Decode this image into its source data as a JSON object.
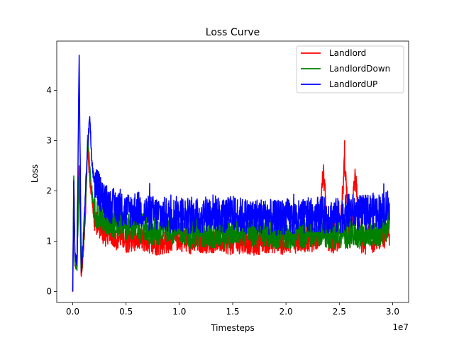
{
  "chart_data": {
    "type": "line",
    "title": "Loss Curve",
    "xlabel": "Timesteps",
    "ylabel": "Loss",
    "x_offset_text": "1e7",
    "xlim": [
      -0.15,
      3.15
    ],
    "ylim": [
      -0.22,
      4.98
    ],
    "x_ticks": [
      0.0,
      0.5,
      1.0,
      1.5,
      2.0,
      2.5,
      3.0
    ],
    "x_tick_labels": [
      "0.0",
      "0.5",
      "1.0",
      "1.5",
      "2.0",
      "2.5",
      "3.0"
    ],
    "y_ticks": [
      0,
      1,
      2,
      3,
      4
    ],
    "y_tick_labels": [
      "0",
      "1",
      "2",
      "3",
      "4"
    ],
    "grid": false,
    "legend_position": "top-right",
    "series": [
      {
        "name": "Landlord",
        "color": "#ff0000",
        "x": [
          0.0,
          0.01,
          0.02,
          0.04,
          0.06,
          0.08,
          0.1,
          0.12,
          0.14,
          0.16,
          0.18,
          0.2,
          0.25,
          0.3,
          0.35,
          0.4,
          0.45,
          0.5,
          0.6,
          0.7,
          0.8,
          0.9,
          1.0,
          1.1,
          1.2,
          1.3,
          1.4,
          1.5,
          1.6,
          1.7,
          1.8,
          1.9,
          2.0,
          2.1,
          2.2,
          2.3,
          2.35,
          2.4,
          2.5,
          2.55,
          2.6,
          2.65,
          2.7,
          2.8,
          2.9,
          2.97
        ],
        "y": [
          0.0,
          2.25,
          0.6,
          0.5,
          2.5,
          0.3,
          0.8,
          1.6,
          2.9,
          2.2,
          1.9,
          1.4,
          1.3,
          1.1,
          1.2,
          1.05,
          1.1,
          1.0,
          1.05,
          1.0,
          0.95,
          1.0,
          1.05,
          0.95,
          1.0,
          1.0,
          1.0,
          0.95,
          1.0,
          0.95,
          1.0,
          1.0,
          0.95,
          1.0,
          1.0,
          1.05,
          2.4,
          1.0,
          1.0,
          2.55,
          1.0,
          2.35,
          0.95,
          1.0,
          1.05,
          1.15
        ]
      },
      {
        "name": "LandlordDown",
        "color": "#008000",
        "x": [
          0.0,
          0.01,
          0.02,
          0.04,
          0.06,
          0.08,
          0.1,
          0.12,
          0.14,
          0.16,
          0.18,
          0.2,
          0.25,
          0.3,
          0.35,
          0.4,
          0.45,
          0.5,
          0.6,
          0.7,
          0.8,
          0.9,
          1.0,
          1.1,
          1.2,
          1.3,
          1.4,
          1.5,
          1.6,
          1.7,
          1.8,
          1.9,
          2.0,
          2.1,
          2.2,
          2.3,
          2.4,
          2.5,
          2.6,
          2.7,
          2.8,
          2.9,
          2.97
        ],
        "y": [
          0.0,
          2.3,
          0.6,
          0.5,
          2.3,
          0.4,
          0.9,
          1.7,
          3.1,
          2.4,
          2.0,
          1.6,
          1.5,
          1.35,
          1.4,
          1.3,
          1.35,
          1.25,
          1.3,
          1.2,
          1.2,
          1.2,
          1.25,
          1.15,
          1.2,
          1.15,
          1.15,
          1.15,
          1.2,
          1.15,
          1.15,
          1.15,
          1.1,
          1.15,
          1.15,
          1.2,
          1.15,
          1.15,
          1.15,
          1.15,
          1.2,
          1.2,
          1.35
        ]
      },
      {
        "name": "LandlordUP",
        "color": "#0000ff",
        "x": [
          0.0,
          0.01,
          0.02,
          0.04,
          0.06,
          0.08,
          0.1,
          0.12,
          0.14,
          0.16,
          0.18,
          0.2,
          0.25,
          0.3,
          0.35,
          0.4,
          0.45,
          0.5,
          0.6,
          0.7,
          0.8,
          0.9,
          1.0,
          1.1,
          1.2,
          1.3,
          1.4,
          1.5,
          1.6,
          1.7,
          1.8,
          1.9,
          2.0,
          2.1,
          2.2,
          2.3,
          2.4,
          2.5,
          2.6,
          2.7,
          2.8,
          2.9,
          2.97
        ],
        "y": [
          0.0,
          2.2,
          0.7,
          0.6,
          4.7,
          0.4,
          1.1,
          2.0,
          2.9,
          3.45,
          2.5,
          2.2,
          2.0,
          1.8,
          1.7,
          1.7,
          1.6,
          1.6,
          1.65,
          1.55,
          1.55,
          1.5,
          1.55,
          1.5,
          1.5,
          1.6,
          1.5,
          1.55,
          1.5,
          1.5,
          1.5,
          1.45,
          1.5,
          1.45,
          1.5,
          1.55,
          1.5,
          1.5,
          1.6,
          1.55,
          1.6,
          1.6,
          1.75
        ]
      }
    ]
  }
}
